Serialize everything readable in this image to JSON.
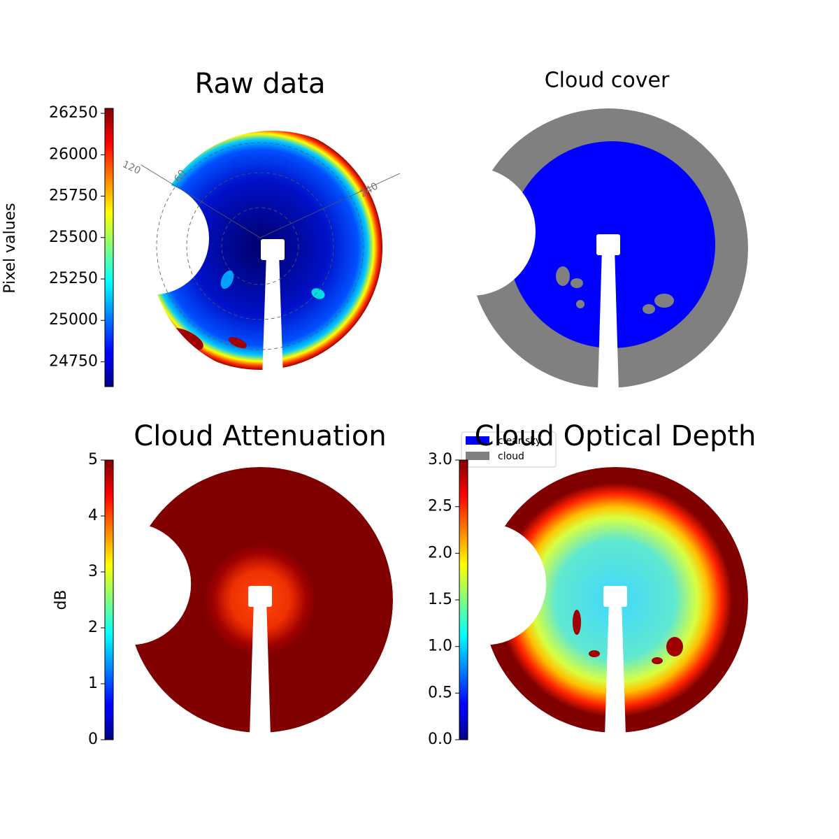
{
  "chart_data": [
    {
      "type": "image",
      "title": "Raw data",
      "colorbar_label": "Pixel values",
      "colormap": "jet",
      "ylim": [
        24600,
        26280
      ],
      "yticks": [
        24750,
        25000,
        25250,
        25500,
        25750,
        26000,
        26250
      ],
      "annotations": [
        "120",
        "60",
        "240"
      ]
    },
    {
      "type": "image",
      "title": "Cloud cover",
      "series": [
        {
          "name": "clear sky",
          "color": "#0000ff"
        },
        {
          "name": "cloud",
          "color": "#808080"
        }
      ]
    },
    {
      "type": "image",
      "title": "Cloud Attenuation",
      "colorbar_label": "dB",
      "colormap": "jet",
      "ylim": [
        0,
        5
      ],
      "yticks": [
        0,
        1,
        2,
        3,
        4,
        5
      ]
    },
    {
      "type": "image",
      "title": "Cloud Optical Depth",
      "colormap": "jet",
      "ylim": [
        0,
        3
      ],
      "yticks": [
        {
          "value": 0,
          "label": "0.0"
        },
        {
          "value": 0.5,
          "label": "0.5"
        },
        {
          "value": 1,
          "label": "1.0"
        },
        {
          "value": 1.5,
          "label": "1.5"
        },
        {
          "value": 2,
          "label": "2.0"
        },
        {
          "value": 2.5,
          "label": "2.5"
        },
        {
          "value": 3,
          "label": "3.0"
        }
      ]
    }
  ]
}
